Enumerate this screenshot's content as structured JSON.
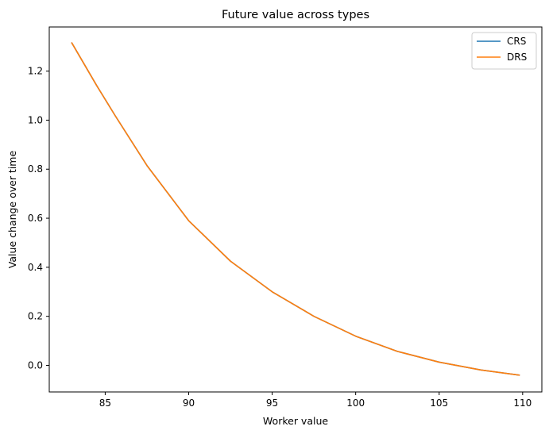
{
  "chart_data": {
    "type": "line",
    "title": "Future value across types",
    "xlabel": "Worker value",
    "ylabel": "Value change over time",
    "xlim": [
      81.65,
      111.15
    ],
    "ylim": [
      -0.1085,
      1.38
    ],
    "xticks": [
      85,
      90,
      95,
      100,
      105,
      110
    ],
    "yticks": [
      0.0,
      0.2,
      0.4,
      0.6,
      0.8,
      1.0,
      1.2
    ],
    "ytick_labels": [
      "0.0",
      "0.2",
      "0.4",
      "0.6",
      "0.8",
      "1.0",
      "1.2"
    ],
    "grid": false,
    "legend_position": "top-right",
    "series": [
      {
        "name": "CRS",
        "color": "#1f77b4",
        "x": [
          83.0,
          84.5,
          85.6,
          87.5,
          90.0,
          92.5,
          95.0,
          97.5,
          100.0,
          102.5,
          105.0,
          107.5,
          109.8
        ],
        "y": [
          1.315,
          1.14,
          1.018,
          0.815,
          0.59,
          0.425,
          0.3,
          0.2,
          0.119,
          0.057,
          0.013,
          -0.019,
          -0.04
        ]
      },
      {
        "name": "DRS",
        "color": "#ff7f0e",
        "x": [
          83.0,
          84.5,
          85.6,
          87.5,
          90.0,
          92.5,
          95.0,
          97.5,
          100.0,
          102.5,
          105.0,
          107.5,
          109.8
        ],
        "y": [
          1.315,
          1.14,
          1.018,
          0.815,
          0.59,
          0.425,
          0.3,
          0.2,
          0.119,
          0.057,
          0.013,
          -0.019,
          -0.04
        ]
      }
    ]
  }
}
